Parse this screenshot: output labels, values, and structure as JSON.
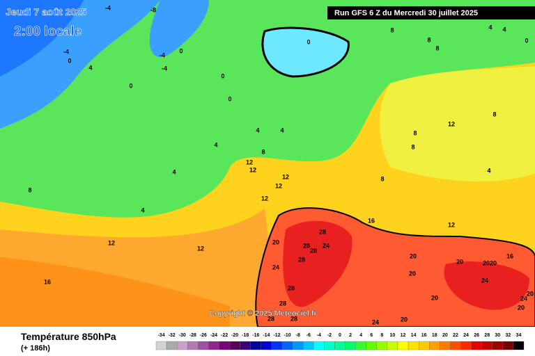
{
  "header": {
    "date": "Jeudi 7 août 2025",
    "time": "2:00 locale",
    "run": "Run GFS 6 Z du Mercredi 30 juillet 2025"
  },
  "copyright": "Copyright © 2025 Meteociel.fr",
  "footer": {
    "title": "Température 850hPa",
    "lead": "(+ 186h)"
  },
  "scale": {
    "values": [
      -34,
      -32,
      -30,
      -28,
      -26,
      -24,
      -22,
      -20,
      -18,
      -16,
      -14,
      -12,
      -10,
      -8,
      -6,
      -4,
      -2,
      0,
      2,
      4,
      6,
      8,
      10,
      12,
      14,
      16,
      18,
      20,
      22,
      24,
      26,
      28,
      30,
      32,
      34
    ],
    "colors": [
      "#d2d2d2",
      "#aaaaaa",
      "#c8a0c8",
      "#b478b4",
      "#a050a0",
      "#8c288c",
      "#780078",
      "#5a005a",
      "#3c0078",
      "#0000a0",
      "#0000d2",
      "#0032ff",
      "#0064ff",
      "#0096ff",
      "#00c8ff",
      "#00ffff",
      "#00ffc8",
      "#00ff96",
      "#00ff64",
      "#32ff32",
      "#64ff00",
      "#96ff00",
      "#c8ff00",
      "#ffff00",
      "#ffe100",
      "#ffc800",
      "#ffa000",
      "#ff7800",
      "#ff5000",
      "#ff2800",
      "#e60000",
      "#c80000",
      "#a00000",
      "#780000",
      "#000000"
    ]
  },
  "contour_labels": [
    "-4",
    "-8",
    "-4",
    "0",
    "4",
    "0",
    "0",
    "0",
    "0",
    "4",
    "4",
    "4",
    "8",
    "4",
    "12",
    "12",
    "12",
    "12",
    "8",
    "12",
    "4",
    "8",
    "12",
    "12",
    "16",
    "16",
    "12",
    "28",
    "20",
    "28",
    "28",
    "24",
    "24",
    "28",
    "28",
    "28",
    "28",
    "28",
    "24",
    "20",
    "20",
    "20",
    "20",
    "20",
    "24",
    "20",
    "20",
    "16",
    "24",
    "20",
    "20",
    "12",
    "8",
    "8",
    "8",
    "4",
    "8",
    "8",
    "8",
    "4",
    "4",
    "0",
    "-4",
    "-4",
    "0"
  ]
}
